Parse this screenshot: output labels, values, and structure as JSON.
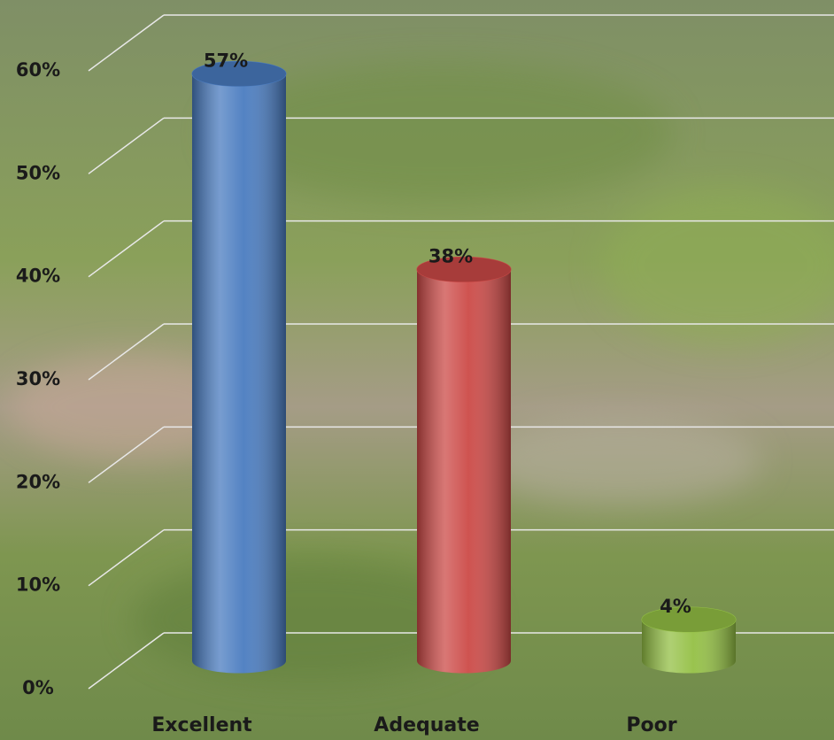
{
  "chart_data": {
    "type": "bar",
    "categories": [
      "Excellent",
      "Adequate",
      "Poor"
    ],
    "values": [
      57,
      38,
      4
    ],
    "value_labels": [
      "57%",
      "38%",
      "4%"
    ],
    "colors": [
      "#4a7cc0",
      "#cc4a47",
      "#94c045"
    ],
    "ylim": [
      0,
      60
    ],
    "yticks": [
      {
        "value": 0,
        "label": "0%"
      },
      {
        "value": 10,
        "label": "10%"
      },
      {
        "value": 20,
        "label": "20%"
      },
      {
        "value": 30,
        "label": "30%"
      },
      {
        "value": 40,
        "label": "40%"
      },
      {
        "value": 50,
        "label": "50%"
      },
      {
        "value": 60,
        "label": "60%"
      }
    ],
    "grid": true
  }
}
